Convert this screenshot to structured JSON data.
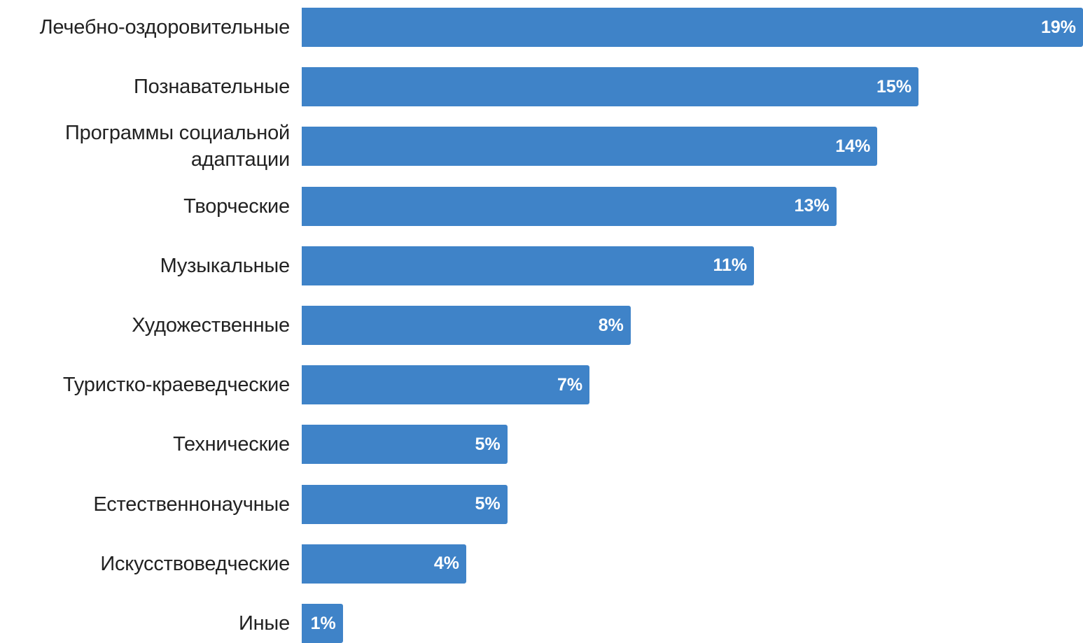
{
  "chart_data": {
    "type": "bar",
    "orientation": "horizontal",
    "categories": [
      "Лечебно-оздоровительные",
      "Познавательные",
      "Программы социальной адаптации",
      "Творческие",
      "Музыкальные",
      "Художественные",
      "Туристко-краеведческие",
      "Технические",
      "Естественнонаучные",
      "Искусствоведческие",
      "Иные"
    ],
    "category_lines": [
      [
        "Лечебно-оздоровительные"
      ],
      [
        "Познавательные"
      ],
      [
        "Программы социальной",
        "адаптации"
      ],
      [
        "Творческие"
      ],
      [
        "Музыкальные"
      ],
      [
        "Художественные"
      ],
      [
        "Туристко-краеведческие"
      ],
      [
        "Технические"
      ],
      [
        "Естественнонаучные"
      ],
      [
        "Искусствоведческие"
      ],
      [
        "Иные"
      ]
    ],
    "values": [
      19,
      15,
      14,
      13,
      11,
      8,
      7,
      5,
      5,
      4,
      1
    ],
    "value_labels": [
      "19%",
      "15%",
      "14%",
      "13%",
      "11%",
      "8%",
      "7%",
      "5%",
      "5%",
      "4%",
      "1%"
    ],
    "unit": "%",
    "xlim": [
      0,
      19
    ],
    "grid": false,
    "legend": "none",
    "bar_color": "#3f83c8",
    "label_color": "#222222",
    "value_label_color": "#ffffff"
  }
}
